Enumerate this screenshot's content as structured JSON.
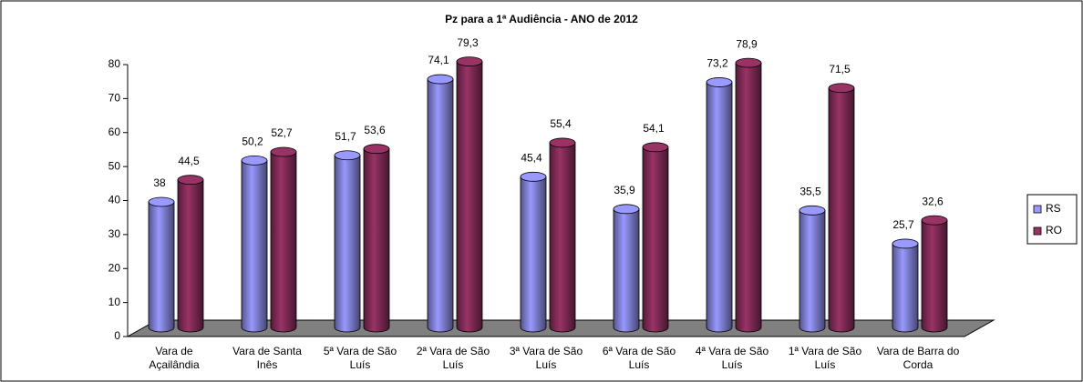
{
  "chart_data": {
    "type": "bar",
    "title": "Pz para a 1ª Audiência - ANO de 2012",
    "categories": [
      "Vara de Açailândia",
      "Vara de Santa Inês",
      "5ª Vara de São Luís",
      "2ª Vara de São Luís",
      "3ª Vara de São Luís",
      "6ª Vara de São Luís",
      "4ª Vara de São Luís",
      "1ª Vara de São Luís",
      "Vara de Barra do Corda"
    ],
    "series": [
      {
        "name": "RS",
        "color": "#9999ff",
        "values": [
          38,
          50.2,
          51.7,
          74.1,
          45.4,
          35.9,
          73.2,
          35.5,
          25.7
        ],
        "value_labels": [
          "38",
          "50,2",
          "51,7",
          "74,1",
          "45,4",
          "35,9",
          "73,2",
          "35,5",
          "25,7"
        ]
      },
      {
        "name": "RO",
        "color": "#993366",
        "values": [
          44.5,
          52.7,
          53.6,
          79.3,
          55.4,
          54.1,
          78.9,
          71.5,
          32.6
        ],
        "value_labels": [
          "44,5",
          "52,7",
          "53,6",
          "79,3",
          "55,4",
          "54,1",
          "78,9",
          "71,5",
          "32,6"
        ]
      }
    ],
    "ylim": [
      0,
      80
    ],
    "yticks": [
      0,
      10,
      20,
      30,
      40,
      50,
      60,
      70,
      80
    ],
    "legend": "right"
  }
}
